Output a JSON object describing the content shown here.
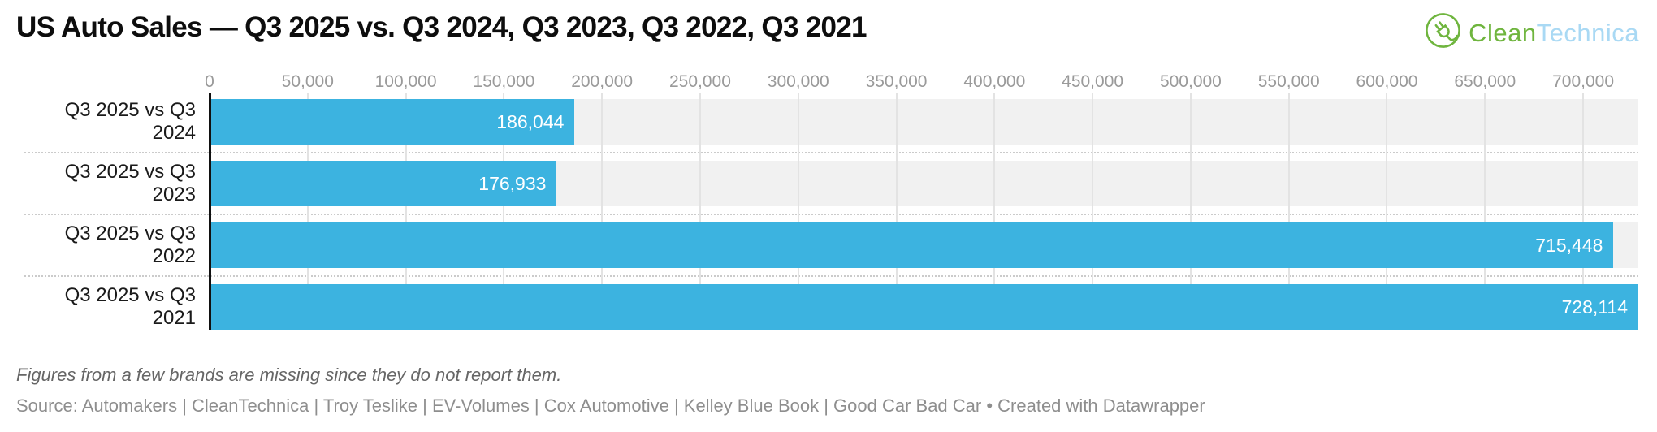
{
  "title": "US Auto Sales — Q3 2025 vs. Q3 2024, Q3 2023, Q3 2022, Q3 2021",
  "logo": {
    "icon": "cleantechnica-plug-icon",
    "text_green": "Clean",
    "text_blue": "Technica",
    "green_color": "#6fb53e",
    "blue_color": "#a9d9f4"
  },
  "chart_data": {
    "type": "bar",
    "orientation": "horizontal",
    "title": "US Auto Sales — Q3 2025 vs. Q3 2024, Q3 2023, Q3 2022, Q3 2021",
    "categories": [
      "Q3 2025 vs Q3 2024",
      "Q3 2025 vs Q3 2023",
      "Q3 2025 vs Q3 2022",
      "Q3 2025 vs Q3 2021"
    ],
    "values": [
      186044,
      176933,
      715448,
      728114
    ],
    "value_labels": [
      "186,044",
      "176,933",
      "715,448",
      "728,114"
    ],
    "xlabel": "",
    "ylabel": "",
    "axis": {
      "min": 0,
      "plot_max": 728114,
      "tick_interval": 50000,
      "tick_values": [
        0,
        50000,
        100000,
        150000,
        200000,
        250000,
        300000,
        350000,
        400000,
        450000,
        500000,
        550000,
        600000,
        650000,
        700000
      ],
      "tick_labels": [
        "0",
        "50,000",
        "100,000",
        "150,000",
        "200,000",
        "250,000",
        "300,000",
        "350,000",
        "400,000",
        "450,000",
        "500,000",
        "550,000",
        "600,000",
        "650,000",
        "700,000"
      ]
    },
    "bar_color": "#3cb3e0",
    "row_band_color": "#f1f1f1",
    "grid": true,
    "legend": false
  },
  "note": "Figures from a few brands are missing since they do not report them.",
  "source": "Source: Automakers | CleanTechnica | Troy Teslike | EV-Volumes | Cox Automotive | Kelley Blue Book | Good Car Bad Car • Created with Datawrapper"
}
